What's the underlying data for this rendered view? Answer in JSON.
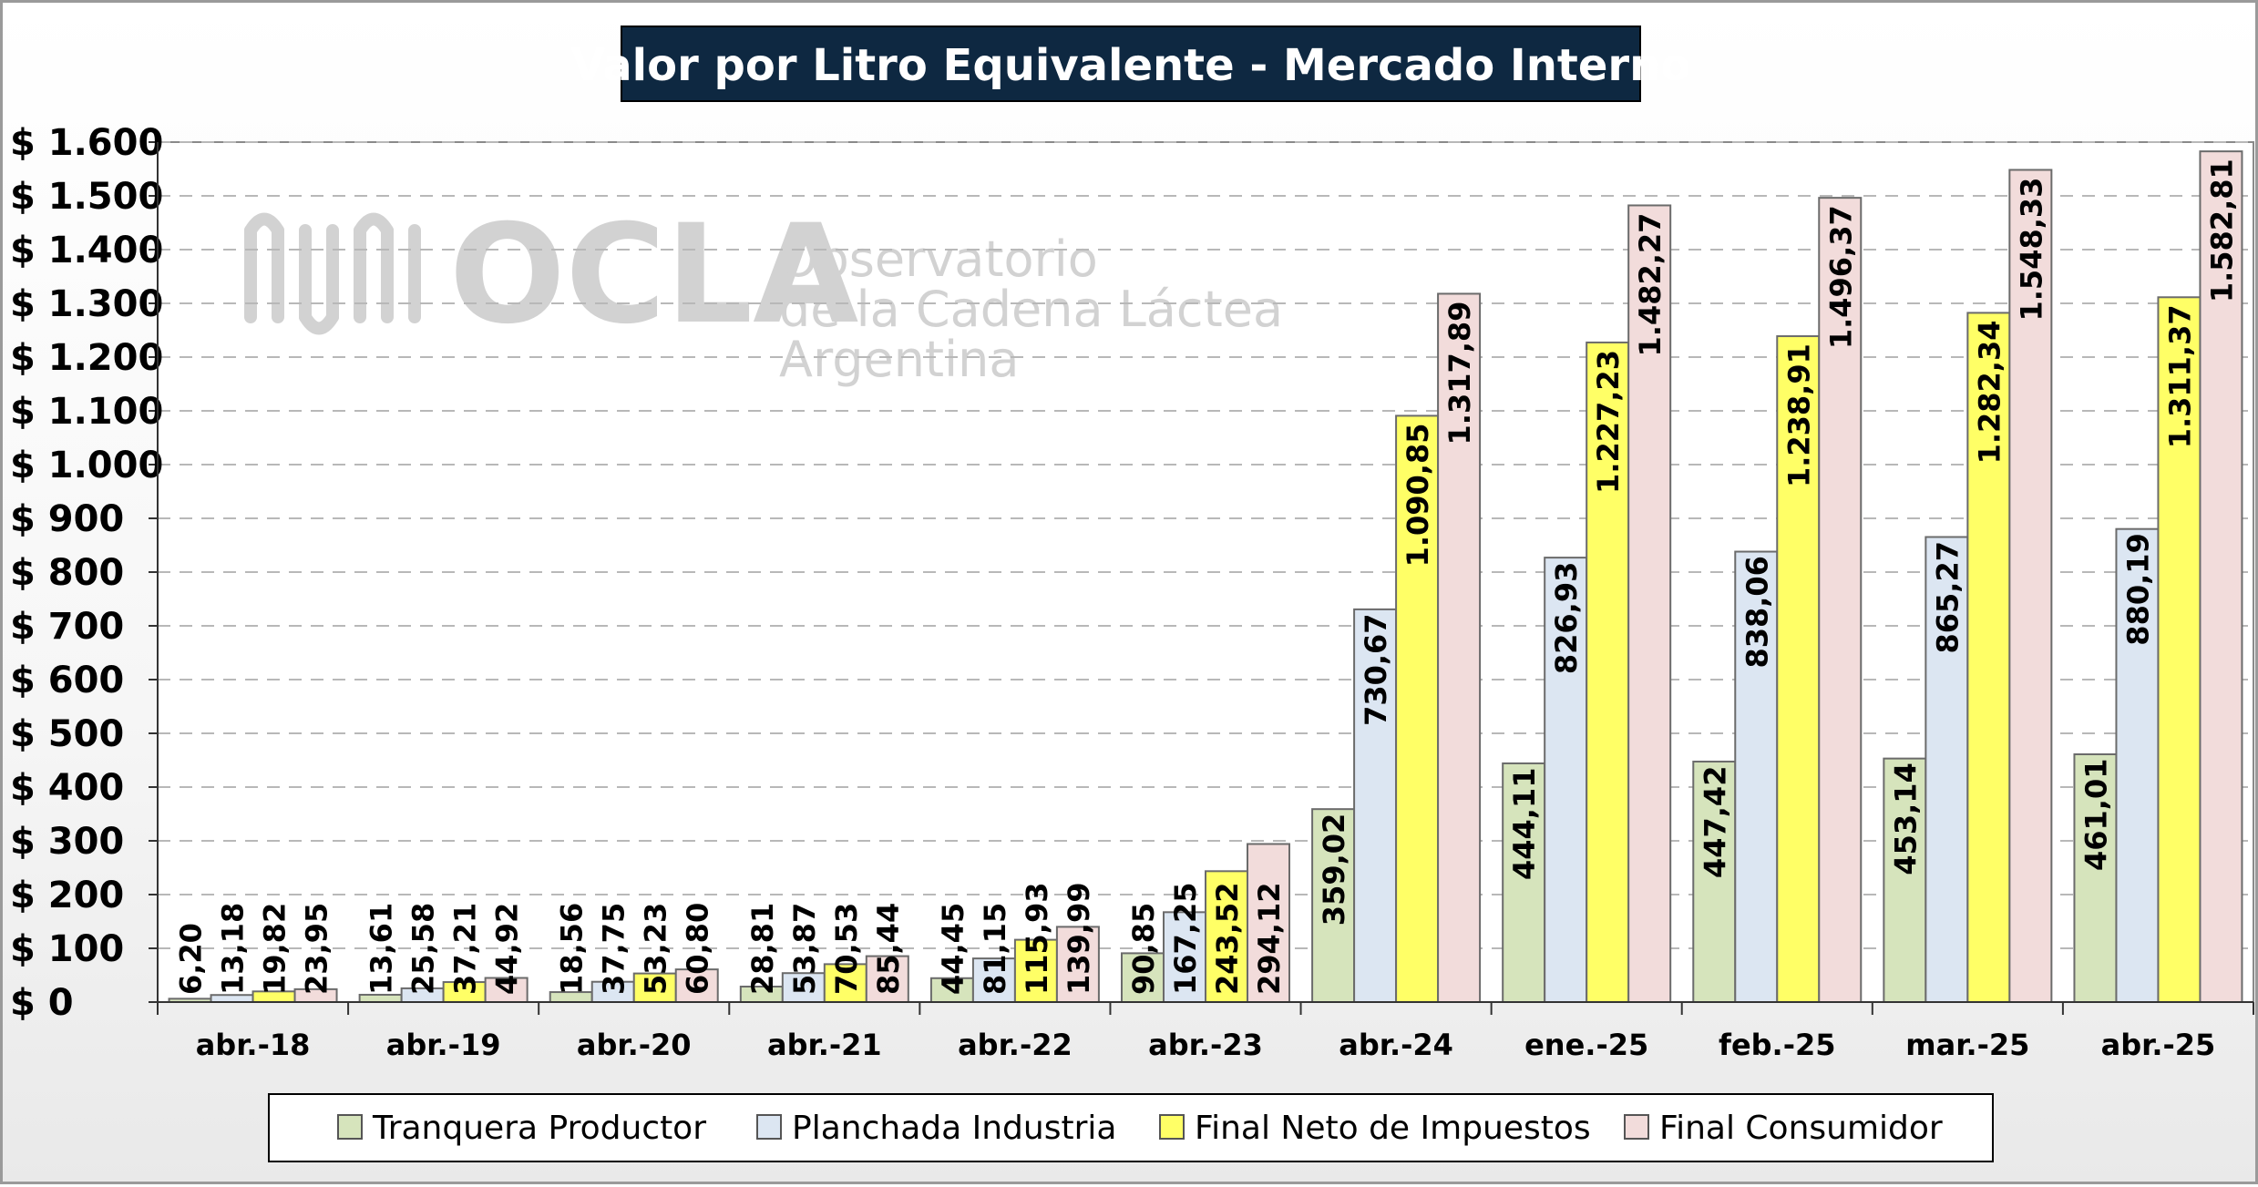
{
  "chart_data": {
    "type": "bar",
    "title": "Valor por Litro Equivalente - Mercado Interno",
    "categories": [
      "abr.-18",
      "abr.-19",
      "abr.-20",
      "abr.-21",
      "abr.-22",
      "abr.-23",
      "abr.-24",
      "ene.-25",
      "feb.-25",
      "mar.-25",
      "abr.-25"
    ],
    "ylim": [
      0,
      1600
    ],
    "yticks": [
      0,
      100,
      200,
      300,
      400,
      500,
      600,
      700,
      800,
      900,
      1000,
      1100,
      1200,
      1300,
      1400,
      1500,
      1600
    ],
    "ytick_labels": [
      "$ 0",
      "$ 100",
      "$ 200",
      "$ 300",
      "$ 400",
      "$ 500",
      "$ 600",
      "$ 700",
      "$ 800",
      "$ 900",
      "$ 1.000",
      "$ 1.100",
      "$ 1.200",
      "$ 1.300",
      "$ 1.400",
      "$ 1.500",
      "$ 1.600"
    ],
    "grid": true,
    "legend_position": "bottom",
    "series": [
      {
        "name": "Tranquera Productor",
        "color": "#d6e4bc",
        "values": [
          6.2,
          13.61,
          18.56,
          28.81,
          44.45,
          90.85,
          359.02,
          444.11,
          447.42,
          453.14,
          461.01
        ],
        "labels": [
          "6,20",
          "13,61",
          "18,56",
          "28,81",
          "44,45",
          "90,85",
          "359,02",
          "444,11",
          "447,42",
          "453,14",
          "461,01"
        ]
      },
      {
        "name": "Planchada Industria",
        "color": "#dce6f2",
        "values": [
          13.18,
          25.58,
          37.75,
          53.87,
          81.15,
          167.25,
          730.67,
          826.93,
          838.06,
          865.27,
          880.19
        ],
        "labels": [
          "13,18",
          "25,58",
          "37,75",
          "53,87",
          "81,15",
          "167,25",
          "730,67",
          "826,93",
          "838,06",
          "865,27",
          "880,19"
        ]
      },
      {
        "name": "Final Neto de Impuestos",
        "color": "#ffff66",
        "values": [
          19.82,
          37.21,
          53.23,
          70.53,
          115.93,
          243.52,
          1090.85,
          1227.23,
          1238.91,
          1282.34,
          1311.37
        ],
        "labels": [
          "19,82",
          "37,21",
          "53,23",
          "70,53",
          "115,93",
          "243,52",
          "1.090,85",
          "1.227,23",
          "1.238,91",
          "1.282,34",
          "1.311,37"
        ]
      },
      {
        "name": "Final Consumidor",
        "color": "#f2dcdb",
        "values": [
          23.95,
          44.92,
          60.8,
          85.44,
          139.99,
          294.12,
          1317.89,
          1482.27,
          1496.37,
          1548.33,
          1582.81
        ],
        "labels": [
          "23,95",
          "44,92",
          "60,80",
          "85,44",
          "139,99",
          "294,12",
          "1.317,89",
          "1.482,27",
          "1.496,37",
          "1.548,33",
          "1.582,81"
        ]
      }
    ]
  },
  "watermark": {
    "logo_text": "OCLA",
    "line1": "Observatorio",
    "line2": "de la Cadena Láctea",
    "line3": "Argentina"
  },
  "colors": {
    "title_bg": "#0e2841",
    "bar_stroke": "#6b6b6b",
    "grid": "#b8b8b8"
  }
}
